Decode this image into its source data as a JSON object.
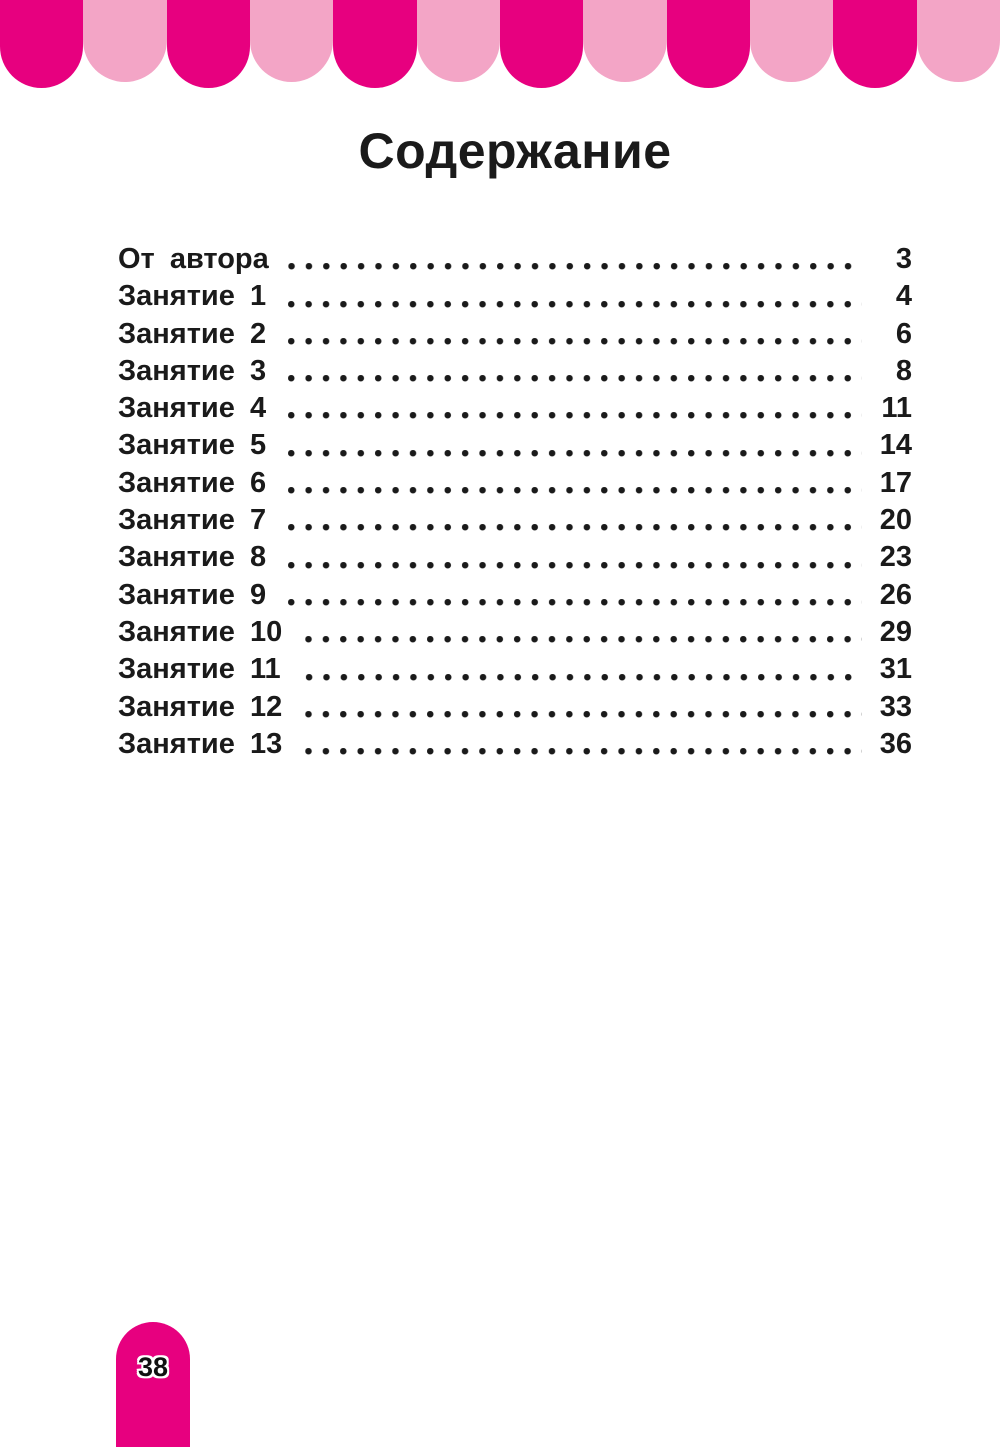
{
  "header": {
    "awning_tab_count": 12,
    "awning_dark_color": "#e7007f",
    "awning_light_color": "#f3a5c6"
  },
  "page": {
    "title": "Содержание",
    "page_number": "38"
  },
  "toc": {
    "entries": [
      {
        "label": "От автора",
        "page": "3"
      },
      {
        "label": "Занятие 1",
        "page": "4"
      },
      {
        "label": "Занятие 2",
        "page": "6"
      },
      {
        "label": "Занятие 3",
        "page": "8"
      },
      {
        "label": "Занятие 4",
        "page": "11"
      },
      {
        "label": "Занятие 5",
        "page": "14"
      },
      {
        "label": "Занятие 6",
        "page": "17"
      },
      {
        "label": "Занятие 7",
        "page": "20"
      },
      {
        "label": "Занятие 8",
        "page": "23"
      },
      {
        "label": "Занятие 9",
        "page": "26"
      },
      {
        "label": "Занятие 10",
        "page": "29"
      },
      {
        "label": "Занятие 11",
        "page": "31"
      },
      {
        "label": "Занятие 12",
        "page": "33"
      },
      {
        "label": "Занятие 13",
        "page": "36"
      }
    ]
  }
}
